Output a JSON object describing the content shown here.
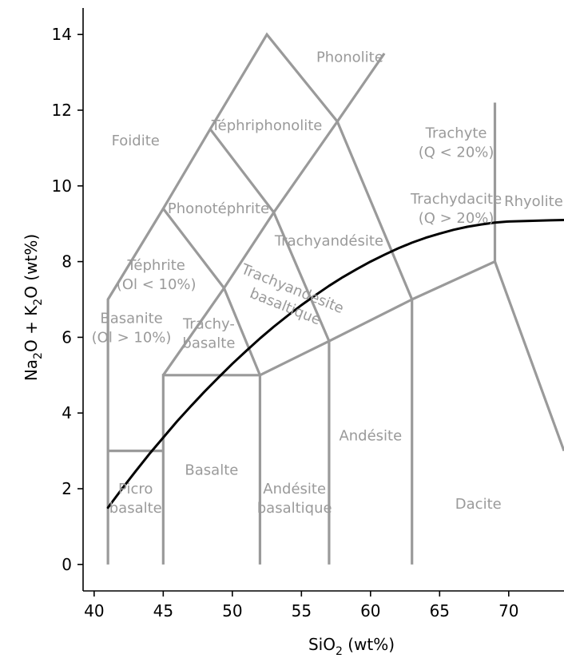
{
  "chart_data": {
    "type": "line",
    "xlabel": {
      "base": "SiO",
      "sub": "2",
      "unit": " (wt%)"
    },
    "ylabel": {
      "p1": "Na",
      "s1": "2",
      "p2": "O + K",
      "s2": "2",
      "p3": "O (wt%)"
    },
    "xlim": [
      39.2,
      74.0
    ],
    "ylim": [
      -0.7,
      14.7
    ],
    "xticks": [
      40,
      45,
      50,
      55,
      60,
      65,
      70
    ],
    "yticks": [
      0,
      2,
      4,
      6,
      8,
      10,
      12,
      14
    ],
    "grid": false,
    "boundary_color": "#9a9a9a",
    "curve_color": "#000000",
    "boundaries": [
      [
        [
          41,
          0
        ],
        [
          41,
          7
        ],
        [
          45,
          9.4
        ],
        [
          48.4,
          11.5
        ],
        [
          52.5,
          14
        ],
        [
          57.6,
          11.7
        ],
        [
          63,
          7
        ],
        [
          69,
          8
        ],
        [
          74.0,
          3.0
        ]
      ],
      [
        [
          41,
          3
        ],
        [
          45,
          3
        ]
      ],
      [
        [
          45,
          0
        ],
        [
          45,
          5
        ],
        [
          52,
          5
        ],
        [
          52,
          0
        ]
      ],
      [
        [
          57,
          0
        ],
        [
          57,
          5.9
        ]
      ],
      [
        [
          63,
          0
        ],
        [
          63,
          7
        ]
      ],
      [
        [
          69,
          8
        ],
        [
          69,
          12.2
        ]
      ],
      [
        [
          52,
          5
        ],
        [
          57,
          5.9
        ],
        [
          63,
          7
        ]
      ],
      [
        [
          45,
          5
        ],
        [
          49.4,
          7.3
        ],
        [
          52,
          5
        ]
      ],
      [
        [
          57,
          5.9
        ],
        [
          53,
          9.3
        ],
        [
          49.4,
          7.3
        ],
        [
          45,
          9.4
        ]
      ],
      [
        [
          48.4,
          11.5
        ],
        [
          53,
          9.3
        ],
        [
          57.6,
          11.7
        ],
        [
          61,
          13.5
        ]
      ]
    ],
    "region_labels": [
      {
        "lines": [
          "Phonolite"
        ],
        "x": 58.5,
        "y": 13.4,
        "rotate": 0
      },
      {
        "lines": [
          "Foidite"
        ],
        "x": 43,
        "y": 11.2,
        "rotate": 0
      },
      {
        "lines": [
          "Téphriphonolite"
        ],
        "x": 52.5,
        "y": 11.6,
        "rotate": 0
      },
      {
        "lines": [
          "Trachyte",
          "(Q < 20%)"
        ],
        "x": 66.2,
        "y": 11.15,
        "rotate": 0
      },
      {
        "lines": [
          "Trachydacite",
          "(Q > 20%)"
        ],
        "x": 66.2,
        "y": 9.4,
        "rotate": 0
      },
      {
        "lines": [
          "Rhyolite"
        ],
        "x": 71.8,
        "y": 9.6,
        "rotate": 0
      },
      {
        "lines": [
          "Phonotéphrite"
        ],
        "x": 49.0,
        "y": 9.4,
        "rotate": 0
      },
      {
        "lines": [
          "Trachyandésite"
        ],
        "x": 57.0,
        "y": 8.55,
        "rotate": 0
      },
      {
        "lines": [
          "Téphrite",
          "(Ol < 10%)"
        ],
        "x": 44.5,
        "y": 7.65,
        "rotate": 0
      },
      {
        "lines": [
          "Trachyandesite",
          "basaltique"
        ],
        "x": 54.1,
        "y": 7.05,
        "rotate": 22
      },
      {
        "lines": [
          "Basanite",
          "(Ol > 10%)"
        ],
        "x": 42.7,
        "y": 6.25,
        "rotate": 0
      },
      {
        "lines": [
          "Trachy-",
          "basalte"
        ],
        "x": 48.3,
        "y": 6.1,
        "rotate": 0
      },
      {
        "lines": [
          "Andésite"
        ],
        "x": 60.0,
        "y": 3.4,
        "rotate": 0
      },
      {
        "lines": [
          "Basalte"
        ],
        "x": 48.5,
        "y": 2.5,
        "rotate": 0
      },
      {
        "lines": [
          "Picro",
          "basalte"
        ],
        "x": 43.0,
        "y": 1.75,
        "rotate": 0
      },
      {
        "lines": [
          "Andésite",
          "basaltique"
        ],
        "x": 54.5,
        "y": 1.75,
        "rotate": 0
      },
      {
        "lines": [
          "Dacite"
        ],
        "x": 67.8,
        "y": 1.6,
        "rotate": 0
      }
    ],
    "series": [
      {
        "x": [
          41,
          42,
          43,
          44,
          45,
          46,
          47,
          48,
          49,
          50,
          51,
          52,
          53,
          54,
          55,
          56,
          57,
          58,
          59,
          60,
          61,
          62,
          63,
          64,
          65,
          66,
          67,
          68,
          69,
          70,
          71,
          72,
          73,
          74
        ],
        "y": [
          1.5,
          1.99,
          2.46,
          2.92,
          3.35,
          3.78,
          4.18,
          4.57,
          4.94,
          5.3,
          5.64,
          5.97,
          6.28,
          6.57,
          6.85,
          7.11,
          7.36,
          7.59,
          7.8,
          8.0,
          8.18,
          8.35,
          8.5,
          8.63,
          8.74,
          8.84,
          8.92,
          8.98,
          9.03,
          9.06,
          9.07,
          9.08,
          9.09,
          9.1
        ]
      }
    ]
  }
}
